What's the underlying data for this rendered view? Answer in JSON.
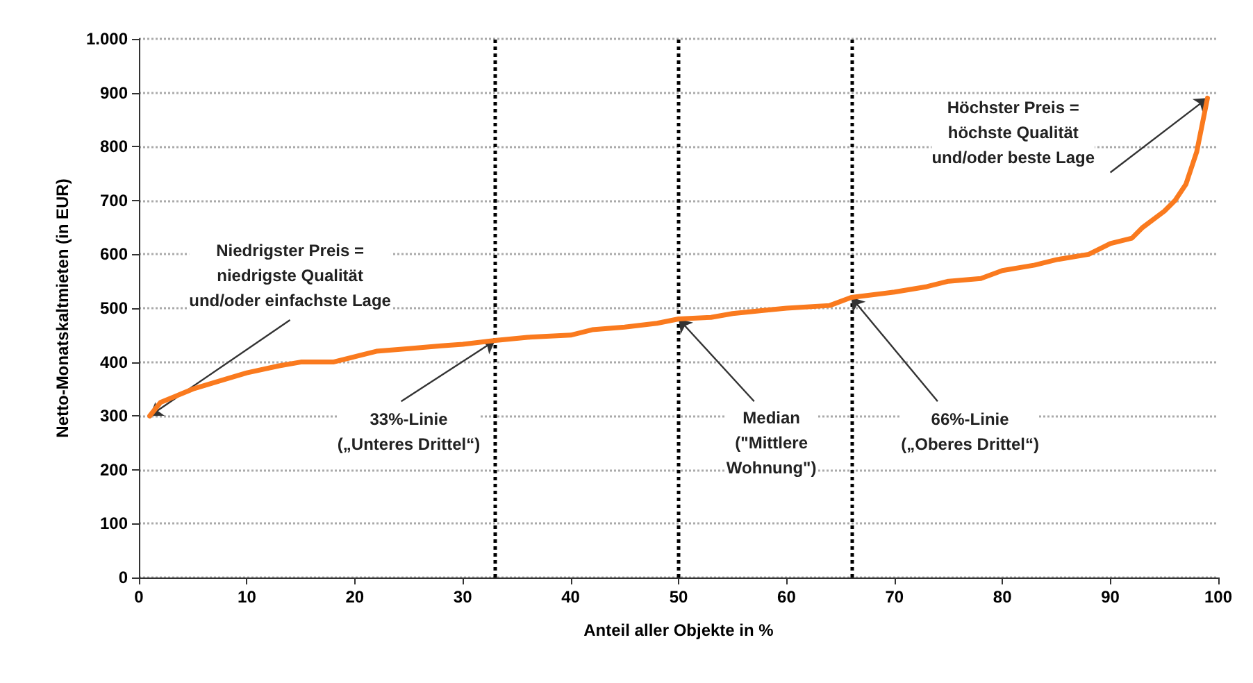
{
  "chart_data": {
    "type": "line",
    "xlabel": "Anteil aller Objekte in %",
    "ylabel": "Netto-Monatskaltmieten (in EUR)",
    "x": [
      1,
      2,
      5,
      8,
      10,
      13,
      15,
      18,
      20,
      22,
      25,
      28,
      30,
      33,
      36,
      40,
      42,
      45,
      48,
      50,
      53,
      55,
      58,
      60,
      64,
      66,
      70,
      73,
      75,
      78,
      80,
      83,
      85,
      88,
      90,
      92,
      93,
      95,
      96,
      97,
      98,
      99
    ],
    "series": [
      {
        "color": "#fa7a1e",
        "values": [
          300,
          325,
          350,
          368,
          380,
          393,
          400,
          400,
          410,
          420,
          425,
          430,
          433,
          440,
          446,
          450,
          460,
          465,
          472,
          480,
          483,
          490,
          496,
          500,
          505,
          520,
          530,
          540,
          550,
          555,
          570,
          580,
          590,
          600,
          620,
          630,
          650,
          680,
          700,
          730,
          790,
          890
        ]
      }
    ],
    "xlim": [
      0,
      100
    ],
    "xticks": [
      0,
      10,
      20,
      30,
      40,
      50,
      60,
      70,
      80,
      90,
      100
    ],
    "ylim": [
      0,
      1000
    ],
    "yticks": [
      0,
      100,
      200,
      300,
      400,
      500,
      600,
      700,
      800,
      900,
      {
        "value": 1000,
        "label": "1.000"
      }
    ],
    "grid": "y",
    "marker": "none",
    "line_style": "solid",
    "ref_lines": [
      {
        "axis": "x",
        "value": 33,
        "label": "33%-Linie\n(„Unteres Drittel“)",
        "line_style": "dotted",
        "color": "#000000"
      },
      {
        "axis": "x",
        "value": 50,
        "label": "Median\n(\"Mittlere\nWohnung\")",
        "line_style": "dotted",
        "color": "#000000"
      },
      {
        "axis": "x",
        "value": 66,
        "label": "66%-Linie\n(„Oberes Drittel“)",
        "line_style": "dotted",
        "color": "#000000"
      }
    ],
    "annotations": [
      {
        "text": "Niedrigster Preis =\nniedrigste Qualität\nund/oder einfachste Lage",
        "x": 1,
        "y": 300
      },
      {
        "text": "Höchster Preis =\nhöchste Qualität\nund/oder beste Lage",
        "x": 99,
        "y": 890
      }
    ]
  }
}
